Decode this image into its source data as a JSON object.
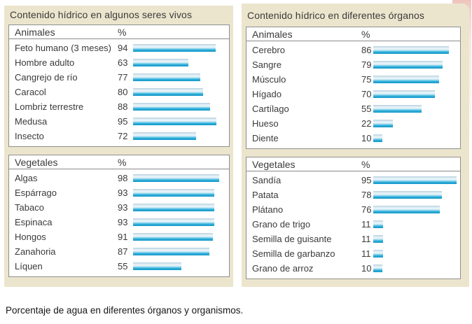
{
  "left_panel": {
    "title": "Contenido hídrico en algunos seres vivos"
  },
  "right_panel": {
    "title": "Contenido hídrico en diferentes órganos"
  },
  "caption": {
    "text": "Porcentaje de agua en diferentes órganos y organismos."
  },
  "colors": {
    "panel_background": "#ece5cd",
    "box_border": "#8f8f8f",
    "bar_cyan_dark": "#1698c9",
    "bar_highlight": "#eef6fa",
    "scan_edge_pink": "#f5d7d1",
    "text": "#3a3a3a"
  },
  "chart_data": [
    {
      "type": "bar",
      "panel": "left",
      "title": "Animales",
      "unit": "%",
      "xlim": [
        0,
        100
      ],
      "categories": [
        "Feto humano (3 meses)",
        "Hombre adulto",
        "Cangrejo de río",
        "Caracol",
        "Lombriz terrestre",
        "Medusa",
        "Insecto"
      ],
      "values": [
        94,
        63,
        77,
        80,
        88,
        95,
        72
      ]
    },
    {
      "type": "bar",
      "panel": "left",
      "title": "Vegetales",
      "unit": "%",
      "xlim": [
        0,
        100
      ],
      "categories": [
        "Algas",
        "Espárrago",
        "Tabaco",
        "Espinaca",
        "Hongos",
        "Zanahoria",
        "Líquen"
      ],
      "values": [
        98,
        93,
        93,
        93,
        91,
        87,
        55
      ]
    },
    {
      "type": "bar",
      "panel": "right",
      "title": "Animales",
      "unit": "%",
      "xlim": [
        0,
        100
      ],
      "categories": [
        "Cerebro",
        "Sangre",
        "Músculo",
        "Hígado",
        "Cartílago",
        "Hueso",
        "Diente"
      ],
      "values": [
        86,
        79,
        75,
        70,
        55,
        22,
        10
      ]
    },
    {
      "type": "bar",
      "panel": "right",
      "title": "Vegetales",
      "unit": "%",
      "xlim": [
        0,
        100
      ],
      "categories": [
        "Sandía",
        "Patata",
        "Plátano",
        "Grano de trigo",
        "Semilla de guisante",
        "Semilla de garbanzo",
        "Grano de arroz"
      ],
      "values": [
        95,
        78,
        76,
        11,
        11,
        11,
        10
      ]
    }
  ]
}
